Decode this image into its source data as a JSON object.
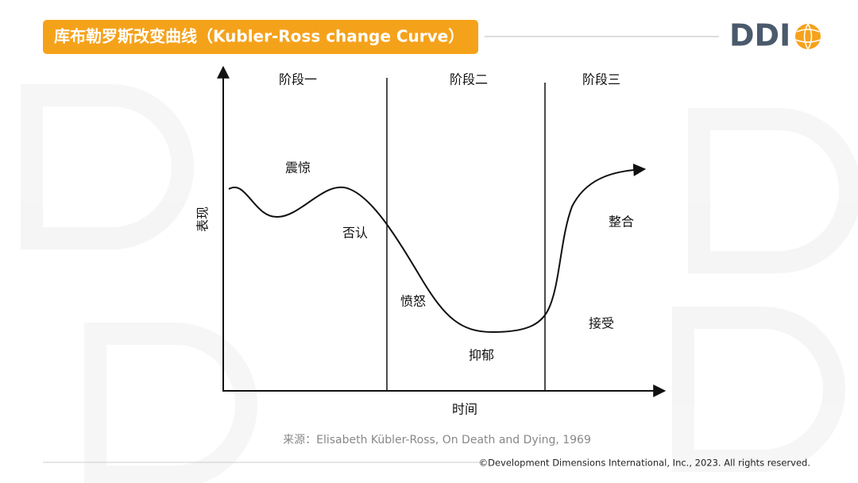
{
  "header": {
    "title": "库布勒罗斯改变曲线（Kubler-Ross change Curve）",
    "logo": "DDI"
  },
  "diagram": {
    "phases": [
      "阶段一",
      "阶段二",
      "阶段三"
    ],
    "stages": [
      "震惊",
      "否认",
      "愤怒",
      "抑郁",
      "接受",
      "整合"
    ],
    "y_axis_label": "表现",
    "x_axis_label": "时间"
  },
  "source": "来源：Elisabeth Kübler-Ross, On Death and Dying, 1969",
  "footer": {
    "copyright": "©Development Dimensions International, Inc., 2023. All rights reserved."
  }
}
